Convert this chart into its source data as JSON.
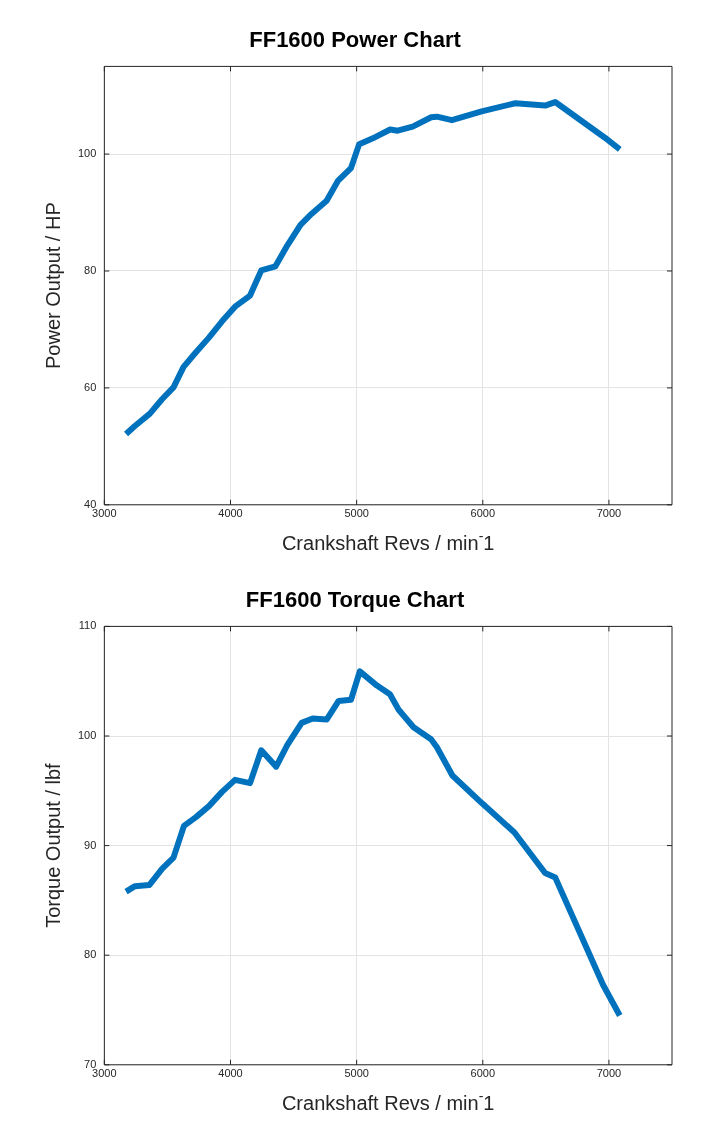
{
  "chart_data": [
    {
      "type": "line",
      "title": "FF1600 Power Chart",
      "xlabel": "Crankshaft Revs / min$^{-}$1",
      "ylabel": "Power Output / HP",
      "xlim": [
        3000,
        7500
      ],
      "xticks": [
        3000,
        4000,
        5000,
        6000,
        7000
      ],
      "ylim": [
        40,
        115
      ],
      "yticks": [
        40,
        60,
        80,
        100
      ],
      "grid": true,
      "line_style": "solid",
      "marker": "none",
      "series": [
        {
          "color": "#0072bd",
          "x": [
            3172,
            3237,
            3361,
            3459,
            3548,
            3628,
            3726,
            3829,
            3933,
            4036,
            4155,
            4244,
            4356,
            4451,
            4555,
            4644,
            4762,
            4851,
            4955,
            5020,
            5147,
            5266,
            5325,
            5444,
            5591,
            5636,
            5755,
            5991,
            6258,
            6494,
            6574,
            6968,
            7086
          ],
          "values": [
            52.1,
            53.4,
            55.6,
            58.1,
            60.1,
            63.6,
            66.1,
            68.6,
            71.4,
            73.9,
            75.8,
            80.1,
            80.8,
            84.4,
            87.9,
            89.8,
            92.0,
            95.4,
            97.6,
            101.7,
            102.9,
            104.2,
            104.0,
            104.7,
            106.3,
            106.4,
            105.8,
            107.3,
            108.7,
            108.3,
            108.9,
            102.8,
            100.8
          ]
        }
      ]
    },
    {
      "type": "line",
      "title": "FF1600 Torque Chart",
      "xlabel": "Crankshaft Revs / min$^{-}$1",
      "ylabel": "Torque Output / lbf",
      "xlim": [
        3000,
        7500
      ],
      "xticks": [
        3000,
        4000,
        5000,
        6000,
        7000
      ],
      "ylim": [
        70,
        110
      ],
      "yticks": [
        70,
        80,
        90,
        100,
        110
      ],
      "grid": true,
      "line_style": "solid",
      "marker": "none",
      "series": [
        {
          "color": "#0072bd",
          "x": [
            3172,
            3243,
            3356,
            3459,
            3548,
            3631,
            3726,
            3829,
            3933,
            4036,
            4155,
            4244,
            4362,
            4451,
            4564,
            4652,
            4762,
            4857,
            4955,
            5025,
            5161,
            5264,
            5333,
            5451,
            5590,
            5635,
            5759,
            5990,
            6251,
            6494,
            6574,
            6953,
            7086
          ],
          "values": [
            85.8,
            86.3,
            86.4,
            87.9,
            88.9,
            91.8,
            92.6,
            93.6,
            94.9,
            96.0,
            95.7,
            98.7,
            97.2,
            99.2,
            101.2,
            101.6,
            101.5,
            103.2,
            103.3,
            105.9,
            104.6,
            103.8,
            102.4,
            100.8,
            99.7,
            99.0,
            96.4,
            93.9,
            91.2,
            87.5,
            87.1,
            77.3,
            74.5
          ]
        }
      ]
    }
  ]
}
